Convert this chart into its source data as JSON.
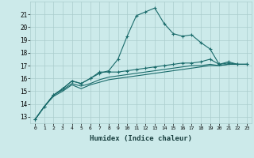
{
  "background_color": "#cceaea",
  "grid_color": "#aacccc",
  "line_color": "#1a6b6b",
  "x_label": "Humidex (Indice chaleur)",
  "ylim": [
    12.5,
    22.0
  ],
  "xlim": [
    -0.5,
    23.5
  ],
  "yticks": [
    13,
    14,
    15,
    16,
    17,
    18,
    19,
    20,
    21
  ],
  "xticks": [
    0,
    1,
    2,
    3,
    4,
    5,
    6,
    7,
    8,
    9,
    10,
    11,
    12,
    13,
    14,
    15,
    16,
    17,
    18,
    19,
    20,
    21,
    22,
    23
  ],
  "series1_x": [
    0,
    1,
    2,
    3,
    4,
    5,
    6,
    7,
    8,
    9,
    10,
    11,
    12,
    13,
    14,
    15,
    16,
    17,
    18,
    19,
    20,
    21,
    22,
    23
  ],
  "series1_y": [
    12.8,
    13.8,
    14.7,
    15.2,
    15.8,
    15.6,
    16.0,
    16.4,
    16.6,
    17.5,
    19.3,
    20.9,
    21.2,
    21.5,
    20.3,
    19.5,
    19.3,
    19.4,
    18.8,
    18.3,
    17.1,
    17.3,
    17.1,
    17.1
  ],
  "series2_x": [
    0,
    1,
    2,
    3,
    4,
    5,
    6,
    7,
    8,
    9,
    10,
    11,
    12,
    13,
    14,
    15,
    16,
    17,
    18,
    19,
    20,
    21,
    22,
    23
  ],
  "series2_y": [
    12.8,
    13.8,
    14.7,
    15.2,
    15.8,
    15.6,
    16.0,
    16.5,
    16.5,
    16.5,
    16.6,
    16.7,
    16.8,
    16.9,
    17.0,
    17.1,
    17.2,
    17.2,
    17.3,
    17.5,
    17.1,
    17.2,
    17.1,
    17.1
  ],
  "series3_x": [
    0,
    1,
    2,
    3,
    4,
    5,
    6,
    7,
    8,
    9,
    10,
    11,
    12,
    13,
    14,
    15,
    16,
    17,
    18,
    19,
    20,
    21,
    22,
    23
  ],
  "series3_y": [
    12.8,
    13.8,
    14.7,
    15.1,
    15.6,
    15.4,
    15.6,
    15.9,
    16.1,
    16.2,
    16.3,
    16.4,
    16.5,
    16.6,
    16.7,
    16.8,
    16.9,
    17.0,
    17.0,
    17.1,
    17.0,
    17.1,
    17.1,
    17.1
  ],
  "series4_x": [
    0,
    1,
    2,
    3,
    4,
    5,
    6,
    7,
    8,
    9,
    10,
    11,
    12,
    13,
    14,
    15,
    16,
    17,
    18,
    19,
    20,
    21,
    22,
    23
  ],
  "series4_y": [
    12.8,
    13.8,
    14.6,
    15.0,
    15.5,
    15.2,
    15.5,
    15.7,
    15.9,
    16.0,
    16.1,
    16.2,
    16.3,
    16.4,
    16.5,
    16.6,
    16.7,
    16.8,
    16.9,
    17.0,
    17.0,
    17.1,
    17.1,
    17.1
  ]
}
